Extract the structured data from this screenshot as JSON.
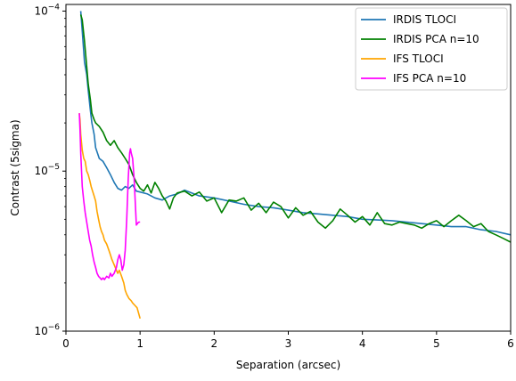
{
  "chart_data": {
    "type": "line",
    "title": "",
    "xlabel": "Separation (arcsec)",
    "ylabel": "Contrast (5sigma)",
    "xlim": [
      0,
      6
    ],
    "ylim": [
      1e-06,
      0.00011
    ],
    "yscale": "log",
    "grid": false,
    "legend_position": "top-right",
    "x_ticks": [
      0,
      1,
      2,
      3,
      4,
      5,
      6
    ],
    "x_tick_labels": [
      "0",
      "1",
      "2",
      "3",
      "4",
      "5",
      "6"
    ],
    "y_ticks": [
      1e-06,
      1e-05,
      0.0001
    ],
    "y_tick_labels": [
      {
        "base": "10",
        "exp": "−6"
      },
      {
        "base": "10",
        "exp": "−5"
      },
      {
        "base": "10",
        "exp": "−4"
      }
    ],
    "series": [
      {
        "name": "IRDIS TLOCI",
        "color": "#1f77b4",
        "x": [
          0.2,
          0.22,
          0.25,
          0.28,
          0.3,
          0.33,
          0.35,
          0.38,
          0.4,
          0.45,
          0.5,
          0.55,
          0.6,
          0.65,
          0.7,
          0.75,
          0.8,
          0.85,
          0.9,
          0.95,
          1.0,
          1.1,
          1.2,
          1.3,
          1.4,
          1.5,
          1.6,
          1.8,
          2.0,
          2.2,
          2.4,
          2.6,
          2.8,
          3.0,
          3.2,
          3.4,
          3.6,
          3.8,
          4.0,
          4.2,
          4.4,
          4.6,
          4.8,
          5.0,
          5.2,
          5.4,
          5.6,
          5.8,
          6.0
        ],
        "y": [
          0.0001,
          7.5e-05,
          4.8e-05,
          4e-05,
          3.2e-05,
          2.4e-05,
          2e-05,
          1.7e-05,
          1.4e-05,
          1.2e-05,
          1.15e-05,
          1.05e-05,
          9.5e-06,
          8.5e-06,
          7.8e-06,
          7.6e-06,
          8e-06,
          7.8e-06,
          8.2e-06,
          7.5e-06,
          7.4e-06,
          7.2e-06,
          6.8e-06,
          6.6e-06,
          7e-06,
          7.2e-06,
          7.6e-06,
          7e-06,
          6.8e-06,
          6.5e-06,
          6.2e-06,
          6e-06,
          5.9e-06,
          5.7e-06,
          5.5e-06,
          5.4e-06,
          5.3e-06,
          5.2e-06,
          5e-06,
          4.95e-06,
          4.9e-06,
          4.8e-06,
          4.7e-06,
          4.6e-06,
          4.5e-06,
          4.5e-06,
          4.3e-06,
          4.2e-06,
          4e-06
        ]
      },
      {
        "name": "IRDIS PCA n=10",
        "color": "#008000",
        "x": [
          0.2,
          0.22,
          0.25,
          0.28,
          0.3,
          0.33,
          0.35,
          0.38,
          0.4,
          0.45,
          0.5,
          0.55,
          0.6,
          0.65,
          0.7,
          0.75,
          0.8,
          0.85,
          0.9,
          0.95,
          1.0,
          1.05,
          1.1,
          1.15,
          1.2,
          1.25,
          1.3,
          1.35,
          1.4,
          1.45,
          1.5,
          1.6,
          1.7,
          1.8,
          1.9,
          2.0,
          2.1,
          2.2,
          2.3,
          2.4,
          2.5,
          2.6,
          2.7,
          2.8,
          2.9,
          3.0,
          3.1,
          3.2,
          3.3,
          3.4,
          3.5,
          3.6,
          3.7,
          3.8,
          3.9,
          4.0,
          4.1,
          4.2,
          4.3,
          4.4,
          4.5,
          4.6,
          4.7,
          4.8,
          4.9,
          5.0,
          5.1,
          5.2,
          5.3,
          5.4,
          5.5,
          5.6,
          5.7,
          5.8,
          5.9,
          6.0
        ],
        "y": [
          9.5e-05,
          8.8e-05,
          6.5e-05,
          4.5e-05,
          3.5e-05,
          2.8e-05,
          2.3e-05,
          2.1e-05,
          2e-05,
          1.9e-05,
          1.75e-05,
          1.55e-05,
          1.45e-05,
          1.55e-05,
          1.4e-05,
          1.3e-05,
          1.2e-05,
          1.1e-05,
          9.5e-06,
          8.5e-06,
          7.8e-06,
          7.5e-06,
          8.2e-06,
          7.3e-06,
          8.5e-06,
          7.8e-06,
          7e-06,
          6.5e-06,
          5.8e-06,
          6.8e-06,
          7.3e-06,
          7.5e-06,
          7e-06,
          7.4e-06,
          6.5e-06,
          6.8e-06,
          5.5e-06,
          6.6e-06,
          6.5e-06,
          6.8e-06,
          5.7e-06,
          6.3e-06,
          5.5e-06,
          6.4e-06,
          6e-06,
          5.1e-06,
          5.9e-06,
          5.3e-06,
          5.6e-06,
          4.8e-06,
          4.4e-06,
          4.9e-06,
          5.8e-06,
          5.3e-06,
          4.8e-06,
          5.2e-06,
          4.6e-06,
          5.5e-06,
          4.7e-06,
          4.6e-06,
          4.8e-06,
          4.7e-06,
          4.6e-06,
          4.4e-06,
          4.7e-06,
          4.9e-06,
          4.5e-06,
          4.9e-06,
          5.3e-06,
          4.9e-06,
          4.5e-06,
          4.7e-06,
          4.2e-06,
          4e-06,
          3.8e-06,
          3.6e-06
        ]
      },
      {
        "name": "IFS TLOCI",
        "color": "#ffa500",
        "x": [
          0.18,
          0.19,
          0.2,
          0.21,
          0.22,
          0.24,
          0.26,
          0.28,
          0.3,
          0.32,
          0.34,
          0.36,
          0.38,
          0.4,
          0.42,
          0.44,
          0.46,
          0.48,
          0.5,
          0.52,
          0.55,
          0.58,
          0.6,
          0.62,
          0.65,
          0.68,
          0.7,
          0.72,
          0.75,
          0.78,
          0.8,
          0.82,
          0.85,
          0.88,
          0.9,
          0.93,
          0.96,
          1.0
        ],
        "y": [
          2.3e-05,
          2.1e-05,
          1.7e-05,
          1.5e-05,
          1.35e-05,
          1.2e-05,
          1.15e-05,
          1e-05,
          9.5e-06,
          8.8e-06,
          8e-06,
          7.5e-06,
          7e-06,
          6.5e-06,
          5.6e-06,
          5e-06,
          4.5e-06,
          4.2e-06,
          4e-06,
          3.7e-06,
          3.5e-06,
          3.2e-06,
          3e-06,
          2.8e-06,
          2.6e-06,
          2.4e-06,
          2.3e-06,
          2.4e-06,
          2.2e-06,
          2e-06,
          1.8e-06,
          1.7e-06,
          1.6e-06,
          1.55e-06,
          1.5e-06,
          1.45e-06,
          1.4e-06,
          1.2e-06
        ]
      },
      {
        "name": "IFS PCA n=10",
        "color": "#ff00ff",
        "x": [
          0.18,
          0.19,
          0.2,
          0.21,
          0.22,
          0.24,
          0.26,
          0.28,
          0.3,
          0.32,
          0.34,
          0.36,
          0.38,
          0.4,
          0.42,
          0.44,
          0.46,
          0.48,
          0.5,
          0.52,
          0.55,
          0.58,
          0.6,
          0.62,
          0.65,
          0.68,
          0.7,
          0.72,
          0.74,
          0.76,
          0.78,
          0.8,
          0.82,
          0.84,
          0.86,
          0.87,
          0.88,
          0.9,
          0.92,
          0.95,
          0.98,
          1.0
        ],
        "y": [
          2.3e-05,
          1.8e-05,
          1.3e-05,
          1e-05,
          8e-06,
          6.5e-06,
          5.5e-06,
          4.8e-06,
          4.2e-06,
          3.7e-06,
          3.4e-06,
          3e-06,
          2.7e-06,
          2.5e-06,
          2.3e-06,
          2.2e-06,
          2.15e-06,
          2.1e-06,
          2.15e-06,
          2.1e-06,
          2.2e-06,
          2.15e-06,
          2.3e-06,
          2.2e-06,
          2.3e-06,
          2.5e-06,
          2.8e-06,
          3e-06,
          2.8e-06,
          2.4e-06,
          2.6e-06,
          3.2e-06,
          5e-06,
          9e-06,
          1.3e-05,
          1.38e-05,
          1.3e-05,
          1.2e-05,
          9e-06,
          4.6e-06,
          4.8e-06,
          4.8e-06
        ]
      }
    ]
  }
}
